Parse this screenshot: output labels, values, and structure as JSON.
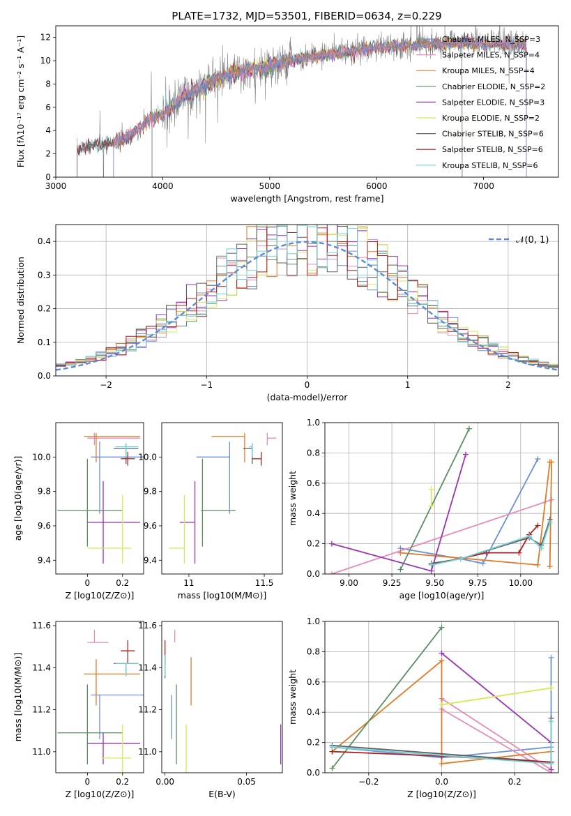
{
  "chart_data": [
    {
      "type": "line",
      "title": "PLATE=1732, MJD=53501, FIBERID=0634, z=0.229",
      "xlabel": "wavelength [Angstrom, rest frame]",
      "ylabel": "Flux [fλ10⁻¹⁷ erg cm⁻² s⁻¹ A⁻¹]",
      "xlim": [
        3000,
        7700
      ],
      "ylim": [
        0,
        13
      ],
      "xticks": [
        3000,
        4000,
        5000,
        6000,
        7000
      ],
      "yticks": [
        0,
        2,
        4,
        6,
        8,
        10,
        12
      ],
      "grid": false,
      "legend_position": "top-right",
      "spectrum_trend": {
        "x": [
          3200,
          3300,
          3400,
          3500,
          3600,
          3700,
          3800,
          3900,
          4000,
          4100,
          4200,
          4300,
          4400,
          4500,
          4600,
          4700,
          4800,
          4900,
          5000,
          5100,
          5200,
          5300,
          5400,
          5500,
          5600,
          5700,
          5800,
          5900,
          6000,
          6100,
          6200,
          6300,
          6400,
          6500,
          6600,
          6700,
          6800,
          6900,
          7000,
          7100,
          7200,
          7300,
          7400
        ],
        "y": [
          2.4,
          2.7,
          2.9,
          2.8,
          3.1,
          3.6,
          4.4,
          5.0,
          5.4,
          6.1,
          7.0,
          7.3,
          7.9,
          8.4,
          8.8,
          9.0,
          9.2,
          9.3,
          9.6,
          9.8,
          10.0,
          10.2,
          10.3,
          10.5,
          10.6,
          10.7,
          10.9,
          11.0,
          11.1,
          11.2,
          11.3,
          11.3,
          11.4,
          11.4,
          11.4,
          11.5,
          11.5,
          11.5,
          11.4,
          11.5,
          11.4,
          11.4,
          11.3
        ]
      },
      "series": [
        {
          "name": "Chabrier MILES, N_SSP=3",
          "color": "#6a8fd9",
          "x_start": 3540,
          "x_end": 7400
        },
        {
          "name": "Salpeter MILES, N_SSP=4",
          "color": "#e88ab7",
          "x_start": 3540,
          "x_end": 7400
        },
        {
          "name": "Kroupa MILES, N_SSP=4",
          "color": "#e07a26",
          "x_start": 3540,
          "x_end": 7400
        },
        {
          "name": "Chabrier ELODIE, N_SSP=2",
          "color": "#5a8f62",
          "x_start": 3900,
          "x_end": 6800
        },
        {
          "name": "Salpeter ELODIE, N_SSP=3",
          "color": "#9a33b5",
          "x_start": 3900,
          "x_end": 6800
        },
        {
          "name": "Kroupa ELODIE, N_SSP=2",
          "color": "#d4ea50",
          "x_start": 3900,
          "x_end": 6800
        },
        {
          "name": "Chabrier STELIB, N_SSP=6",
          "color": "#606060",
          "x_start": 3200,
          "x_end": 7400
        },
        {
          "name": "Salpeter STELIB, N_SSP=6",
          "color": "#b01c1c",
          "x_start": 3200,
          "x_end": 7400
        },
        {
          "name": "Kroupa STELIB, N_SSP=6",
          "color": "#6ed2d9",
          "x_start": 3200,
          "x_end": 7400
        }
      ]
    },
    {
      "type": "line",
      "xlabel": "(data-model)/error",
      "ylabel": "Normed distribution",
      "xlim": [
        -2.5,
        2.5
      ],
      "ylim": [
        0,
        0.45
      ],
      "xticks": [
        -2,
        -1,
        0,
        1,
        2
      ],
      "yticks": [
        0.0,
        0.1,
        0.2,
        0.3,
        0.4
      ],
      "grid": true,
      "legend_position": "top-right",
      "reference": {
        "name": "𝒩(0, 1)",
        "mean": 0,
        "sigma": 1,
        "color": "#5a8ad6",
        "style": "dashed"
      },
      "histogram_bin_width": 0.1,
      "histogram_series_colors": [
        "#6a8fd9",
        "#e88ab7",
        "#e07a26",
        "#5a8f62",
        "#9a33b5",
        "#d4ea50",
        "#606060",
        "#b01c1c",
        "#6ed2d9"
      ]
    },
    {
      "type": "scatter",
      "xlabel": "Z [log10(Z/Z⊙)]",
      "ylabel": "age  [log10(age/yr)]",
      "xlim": [
        -0.18,
        0.32
      ],
      "ylim": [
        9.32,
        10.2
      ],
      "xticks": [
        0.0,
        0.2
      ],
      "yticks": [
        9.4,
        9.6,
        9.8,
        10.0
      ],
      "points": [
        {
          "x": 0.07,
          "y": 10.0,
          "xerr": [
            0.05,
            0.25
          ],
          "yerr": [
            0.33,
            0.09
          ],
          "color": "#6a8fd9"
        },
        {
          "x": 0.04,
          "y": 10.11,
          "xerr": [
            0.04,
            0.26
          ],
          "yerr": [
            0.04,
            0.03
          ],
          "color": "#e88ab7"
        },
        {
          "x": 0.05,
          "y": 10.12,
          "xerr": [
            0.07,
            0.25
          ],
          "yerr": [
            0.15,
            0.02
          ],
          "color": "#e07a26"
        },
        {
          "x": 0.0,
          "y": 9.69,
          "xerr": [
            0.17,
            0.2
          ],
          "yerr": [
            0.21,
            0.3
          ],
          "color": "#5a8f62"
        },
        {
          "x": 0.09,
          "y": 9.62,
          "xerr": [
            0.09,
            0.21
          ],
          "yerr": [
            0.24,
            0.24
          ],
          "color": "#9a33b5"
        },
        {
          "x": 0.2,
          "y": 9.47,
          "xerr": [
            0.2,
            0.05
          ],
          "yerr": [
            0.09,
            0.31
          ],
          "color": "#d4ea50"
        },
        {
          "x": 0.22,
          "y": 10.05,
          "xerr": [
            0.07,
            0.07
          ],
          "yerr": [
            0.09,
            0.03
          ],
          "color": "#606060"
        },
        {
          "x": 0.23,
          "y": 9.99,
          "xerr": [
            0.04,
            0.04
          ],
          "yerr": [
            0.04,
            0.04
          ],
          "color": "#b01c1c"
        },
        {
          "x": 0.22,
          "y": 10.06,
          "xerr": [
            0.06,
            0.07
          ],
          "yerr": [
            0.06,
            0.02
          ],
          "color": "#6ed2d9"
        }
      ]
    },
    {
      "type": "scatter",
      "xlabel": "mass [log10(M/M⊙)]",
      "ylabel": "",
      "xlim": [
        10.82,
        11.62
      ],
      "ylim": [
        9.32,
        10.2
      ],
      "xticks": [
        11.0,
        11.5
      ],
      "yticks": [
        9.4,
        9.6,
        9.8,
        10.0
      ],
      "points": [
        {
          "x": 11.27,
          "y": 10.0,
          "xerr": [
            0.22,
            0.0
          ],
          "yerr": [
            0.33,
            0.09
          ],
          "color": "#6a8fd9"
        },
        {
          "x": 11.52,
          "y": 10.11,
          "xerr": [
            0.0,
            0.06
          ],
          "yerr": [
            0.04,
            0.03
          ],
          "color": "#e88ab7"
        },
        {
          "x": 11.37,
          "y": 10.12,
          "xerr": [
            0.22,
            0.0
          ],
          "yerr": [
            0.15,
            0.02
          ],
          "color": "#e07a26"
        },
        {
          "x": 11.09,
          "y": 9.69,
          "xerr": [
            0.01,
            0.22
          ],
          "yerr": [
            0.21,
            0.3
          ],
          "color": "#5a8f62"
        },
        {
          "x": 11.04,
          "y": 9.62,
          "xerr": [
            0.1,
            0.0
          ],
          "yerr": [
            0.24,
            0.24
          ],
          "color": "#9a33b5"
        },
        {
          "x": 10.97,
          "y": 9.47,
          "xerr": [
            0.1,
            0.0
          ],
          "yerr": [
            0.09,
            0.31
          ],
          "color": "#d4ea50"
        },
        {
          "x": 11.42,
          "y": 10.05,
          "xerr": [
            0.06,
            0.0
          ],
          "yerr": [
            0.09,
            0.03
          ],
          "color": "#606060"
        },
        {
          "x": 11.48,
          "y": 9.99,
          "xerr": [
            0.06,
            0.0
          ],
          "yerr": [
            0.04,
            0.04
          ],
          "color": "#b01c1c"
        },
        {
          "x": 11.42,
          "y": 10.06,
          "xerr": [
            0.02,
            0.0
          ],
          "yerr": [
            0.06,
            0.02
          ],
          "color": "#6ed2d9"
        }
      ]
    },
    {
      "type": "line",
      "xlabel": "age  [log10(age/yr)]",
      "ylabel": "mass weight",
      "xlim": [
        8.86,
        10.22
      ],
      "ylim": [
        0,
        1.0
      ],
      "xticks": [
        9.0,
        9.25,
        9.5,
        9.75,
        10.0
      ],
      "xticklabels": [
        "9.00",
        "9.25",
        "9.50",
        "9.75",
        "10.00"
      ],
      "yticks": [
        0.0,
        0.2,
        0.4,
        0.6,
        0.8,
        1.0
      ],
      "grid": true,
      "series": [
        {
          "color": "#6a8fd9",
          "x": [
            9.3,
            9.65,
            9.78,
            10.1
          ],
          "y": [
            0.17,
            0.1,
            0.07,
            0.76
          ]
        },
        {
          "color": "#e88ab7",
          "x": [
            8.9,
            10.18
          ],
          "y": [
            0.0,
            0.49
          ]
        },
        {
          "color": "#e07a26",
          "x": [
            9.3,
            10.1,
            10.17,
            10.18,
            10.17
          ],
          "y": [
            0.14,
            0.06,
            0.74,
            0.74,
            0.05
          ]
        },
        {
          "color": "#5a8f62",
          "x": [
            9.3,
            9.7
          ],
          "y": [
            0.03,
            0.96
          ]
        },
        {
          "color": "#9a33b5",
          "x": [
            8.9,
            9.48,
            9.68
          ],
          "y": [
            0.2,
            0.02,
            0.79
          ]
        },
        {
          "color": "#d4ea50",
          "x": [
            9.48,
            9.48
          ],
          "y": [
            0.45,
            0.56
          ]
        },
        {
          "color": "#606060",
          "x": [
            9.48,
            9.65,
            10.05,
            10.12,
            10.17
          ],
          "y": [
            0.07,
            0.1,
            0.24,
            0.19,
            0.36
          ]
        },
        {
          "color": "#b01c1c",
          "x": [
            9.48,
            9.8,
            9.99,
            10.05,
            10.1
          ],
          "y": [
            0.06,
            0.14,
            0.14,
            0.26,
            0.32
          ]
        },
        {
          "color": "#6ed2d9",
          "x": [
            9.48,
            9.65,
            10.05,
            10.12,
            10.17
          ],
          "y": [
            0.06,
            0.1,
            0.25,
            0.17,
            0.34
          ]
        }
      ]
    },
    {
      "type": "scatter",
      "xlabel": "Z [log10(Z/Z⊙)]",
      "ylabel": "mass [log10(M/M⊙)]",
      "xlim": [
        -0.18,
        0.32
      ],
      "ylim": [
        10.9,
        11.62
      ],
      "xticks": [
        0.0,
        0.2
      ],
      "yticks": [
        11.0,
        11.2,
        11.4,
        11.6
      ],
      "points": [
        {
          "x": 0.07,
          "y": 11.27,
          "xerr": [
            0.05,
            0.25
          ],
          "yerr": [
            0.21,
            0.0
          ],
          "color": "#6a8fd9"
        },
        {
          "x": 0.04,
          "y": 11.52,
          "xerr": [
            0.04,
            0.08
          ],
          "yerr": [
            0.0,
            0.06
          ],
          "color": "#e88ab7"
        },
        {
          "x": 0.05,
          "y": 11.37,
          "xerr": [
            0.07,
            0.25
          ],
          "yerr": [
            0.15,
            0.07
          ],
          "color": "#e07a26"
        },
        {
          "x": 0.0,
          "y": 11.09,
          "xerr": [
            0.17,
            0.2
          ],
          "yerr": [
            0.15,
            0.23
          ],
          "color": "#5a8f62"
        },
        {
          "x": 0.09,
          "y": 11.04,
          "xerr": [
            0.09,
            0.21
          ],
          "yerr": [
            0.1,
            0.05
          ],
          "color": "#9a33b5"
        },
        {
          "x": 0.2,
          "y": 10.97,
          "xerr": [
            0.12,
            0.05
          ],
          "yerr": [
            0.1,
            0.16
          ],
          "color": "#d4ea50"
        },
        {
          "x": 0.22,
          "y": 11.42,
          "xerr": [
            0.07,
            0.07
          ],
          "yerr": [
            0.06,
            0.0
          ],
          "color": "#606060"
        },
        {
          "x": 0.23,
          "y": 11.48,
          "xerr": [
            0.04,
            0.04
          ],
          "yerr": [
            0.06,
            0.05
          ],
          "color": "#b01c1c"
        },
        {
          "x": 0.22,
          "y": 11.42,
          "xerr": [
            0.06,
            0.07
          ],
          "yerr": [
            0.06,
            0.0
          ],
          "color": "#6ed2d9"
        }
      ]
    },
    {
      "type": "scatter",
      "xlabel": "E(B-V)",
      "ylabel": "",
      "xlim": [
        -0.002,
        0.072
      ],
      "ylim": [
        10.9,
        11.62
      ],
      "xticks": [
        0.0,
        0.05
      ],
      "xticklabels": [
        "0.00",
        "0.05"
      ],
      "yticks": [
        11.0,
        11.2,
        11.4,
        11.6
      ],
      "points": [
        {
          "x": 0.004,
          "y": 11.27,
          "yerr": [
            0.21,
            0.0
          ],
          "color": "#6a8fd9"
        },
        {
          "x": 0.006,
          "y": 11.52,
          "yerr": [
            0.0,
            0.06
          ],
          "color": "#e88ab7"
        },
        {
          "x": 0.016,
          "y": 11.37,
          "yerr": [
            0.15,
            0.08
          ],
          "color": "#e07a26"
        },
        {
          "x": 0.007,
          "y": 11.09,
          "yerr": [
            0.15,
            0.23
          ],
          "color": "#5a8f62"
        },
        {
          "x": 0.071,
          "y": 11.04,
          "yerr": [
            0.1,
            0.09
          ],
          "color": "#9a33b5"
        },
        {
          "x": 0.013,
          "y": 10.97,
          "yerr": [
            0.12,
            0.16
          ],
          "color": "#d4ea50"
        },
        {
          "x": 0.0,
          "y": 11.42,
          "yerr": [
            0.07,
            0.04
          ],
          "color": "#606060"
        },
        {
          "x": 0.0,
          "y": 11.48,
          "yerr": [
            0.06,
            0.05
          ],
          "color": "#b01c1c"
        },
        {
          "x": 0.0,
          "y": 11.42,
          "yerr": [
            0.06,
            0.04
          ],
          "color": "#6ed2d9"
        }
      ]
    },
    {
      "type": "line",
      "xlabel": "Z [log10(Z/Z⊙)]",
      "ylabel": "mass weight",
      "xlim": [
        -0.32,
        0.32
      ],
      "ylim": [
        0,
        1.0
      ],
      "xticks": [
        -0.2,
        0.0,
        0.2
      ],
      "xticklabels": [
        "−0.2",
        "0.0",
        "0.2"
      ],
      "yticks": [
        0.0,
        0.2,
        0.4,
        0.6,
        0.8,
        1.0
      ],
      "grid": true,
      "series": [
        {
          "color": "#6a8fd9",
          "x": [
            -0.3,
            0.0,
            0.3,
            0.3
          ],
          "y": [
            0.17,
            0.1,
            0.17,
            0.76
          ]
        },
        {
          "color": "#e88ab7",
          "x": [
            0.3,
            0.0,
            0.0,
            0.3
          ],
          "y": [
            0.0,
            0.42,
            0.49,
            0.02
          ]
        },
        {
          "color": "#e07a26",
          "x": [
            -0.3,
            0.0,
            0.0,
            0.3
          ],
          "y": [
            0.14,
            0.74,
            0.06,
            0.14
          ]
        },
        {
          "color": "#5a8f62",
          "x": [
            -0.3,
            0.0
          ],
          "y": [
            0.03,
            0.96
          ]
        },
        {
          "color": "#9a33b5",
          "x": [
            0.0,
            0.3,
            0.3
          ],
          "y": [
            0.79,
            0.2,
            0.02
          ]
        },
        {
          "color": "#d4ea50",
          "x": [
            0.0,
            0.3
          ],
          "y": [
            0.45,
            0.56
          ]
        },
        {
          "color": "#606060",
          "x": [
            -0.3,
            0.3,
            0.3
          ],
          "y": [
            0.18,
            0.07,
            0.36
          ]
        },
        {
          "color": "#b01c1c",
          "x": [
            -0.3,
            0.0,
            0.3
          ],
          "y": [
            0.14,
            0.11,
            0.07
          ]
        },
        {
          "color": "#6ed2d9",
          "x": [
            -0.3,
            0.3,
            0.3
          ],
          "y": [
            0.17,
            0.06,
            0.34
          ]
        }
      ]
    }
  ]
}
